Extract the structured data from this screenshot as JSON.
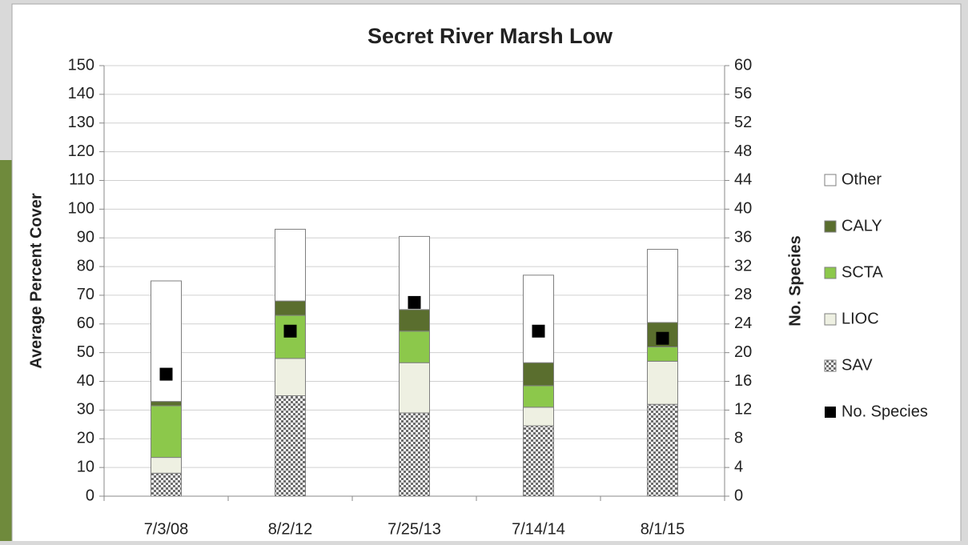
{
  "chart_data": {
    "type": "bar",
    "stacked": true,
    "title": "Secret River Marsh Low",
    "y_label": "Average Percent Cover",
    "y2_label": "No. Species",
    "categories": [
      "7/3/08",
      "8/2/12",
      "7/25/13",
      "7/14/14",
      "8/1/15"
    ],
    "series": [
      {
        "name": "SAV",
        "color": "#6e6e6e",
        "pattern": "checker",
        "values": [
          8,
          35,
          29,
          24.5,
          32
        ]
      },
      {
        "name": "LIOC",
        "color": "#eef0e2",
        "values": [
          5.5,
          13,
          17.5,
          6.5,
          15
        ]
      },
      {
        "name": "SCTA",
        "color": "#8cc84b",
        "values": [
          18,
          15,
          11,
          7.5,
          5
        ]
      },
      {
        "name": "CALY",
        "color": "#5a6e2e",
        "values": [
          1.5,
          5,
          7.5,
          8,
          8.5
        ]
      },
      {
        "name": "Other",
        "color": "#ffffff",
        "values": [
          42,
          25,
          25.5,
          30.5,
          25.5
        ]
      },
      {
        "name": "No. Species",
        "color": "#000000",
        "type": "scatter",
        "axis": "y2",
        "values": [
          17,
          23,
          27,
          23,
          22
        ]
      }
    ],
    "ylim": [
      0,
      150
    ],
    "yticks": [
      0,
      10,
      20,
      30,
      40,
      50,
      60,
      70,
      80,
      90,
      100,
      110,
      120,
      130,
      140,
      150
    ],
    "y2lim": [
      0,
      60
    ],
    "y2ticks": [
      0,
      4,
      8,
      12,
      16,
      20,
      24,
      28,
      32,
      36,
      40,
      44,
      48,
      52,
      56,
      60
    ],
    "grid": true,
    "legend": "right"
  }
}
